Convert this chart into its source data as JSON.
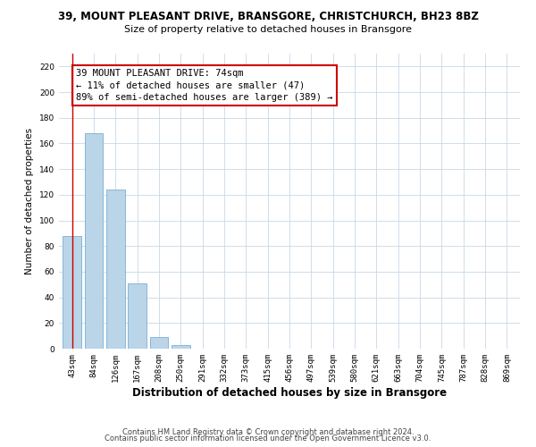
{
  "title": "39, MOUNT PLEASANT DRIVE, BRANSGORE, CHRISTCHURCH, BH23 8BZ",
  "subtitle": "Size of property relative to detached houses in Bransgore",
  "xlabel": "Distribution of detached houses by size in Bransgore",
  "ylabel": "Number of detached properties",
  "bar_labels": [
    "43sqm",
    "84sqm",
    "126sqm",
    "167sqm",
    "208sqm",
    "250sqm",
    "291sqm",
    "332sqm",
    "373sqm",
    "415sqm",
    "456sqm",
    "497sqm",
    "539sqm",
    "580sqm",
    "621sqm",
    "663sqm",
    "704sqm",
    "745sqm",
    "787sqm",
    "828sqm",
    "869sqm"
  ],
  "bar_values": [
    88,
    168,
    124,
    51,
    9,
    3,
    0,
    0,
    0,
    0,
    0,
    0,
    0,
    0,
    0,
    0,
    0,
    0,
    0,
    0,
    0
  ],
  "bar_color": "#bad4e8",
  "bar_edge_color": "#7aafd4",
  "marker_color": "#cc0000",
  "ylim": [
    0,
    230
  ],
  "yticks": [
    0,
    20,
    40,
    60,
    80,
    100,
    120,
    140,
    160,
    180,
    200,
    220
  ],
  "annotation_title": "39 MOUNT PLEASANT DRIVE: 74sqm",
  "annotation_line1": "← 11% of detached houses are smaller (47)",
  "annotation_line2": "89% of semi-detached houses are larger (389) →",
  "annotation_box_color": "#ffffff",
  "annotation_box_edge": "#cc0000",
  "footer1": "Contains HM Land Registry data © Crown copyright and database right 2024.",
  "footer2": "Contains public sector information licensed under the Open Government Licence v3.0.",
  "bg_color": "#ffffff",
  "grid_color": "#c8d8e8",
  "title_fontsize": 8.5,
  "subtitle_fontsize": 8,
  "xlabel_fontsize": 8.5,
  "ylabel_fontsize": 7.5,
  "tick_fontsize": 6.5,
  "ann_fontsize": 7.5,
  "footer_fontsize": 6
}
